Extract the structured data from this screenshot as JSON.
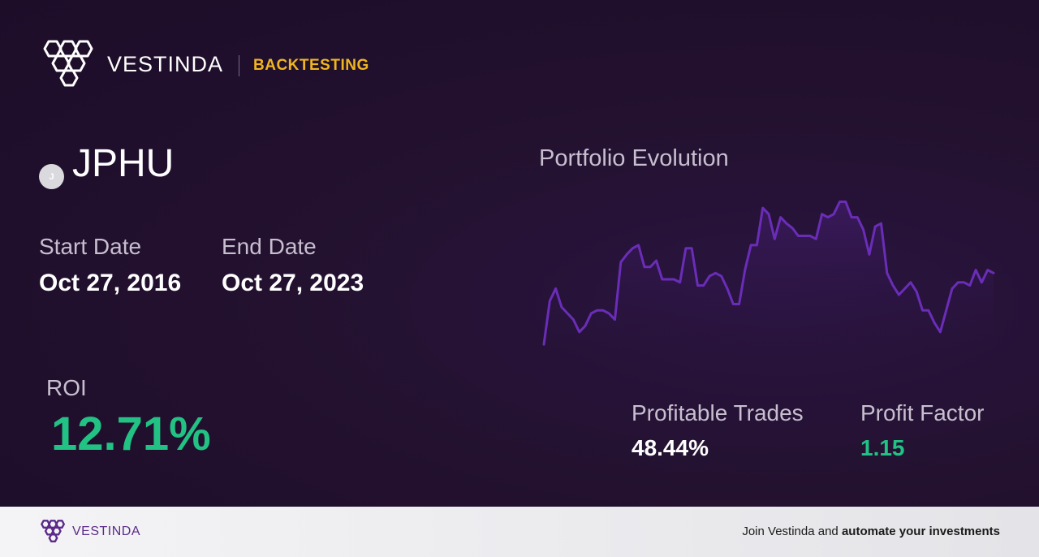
{
  "header": {
    "brand": "VESTINDA",
    "product": "BACKTESTING",
    "logo_icon": "vestinda-hexagon-logo-icon"
  },
  "asset": {
    "badge_letter": "J",
    "ticker": "JPHU"
  },
  "dates": {
    "start_label": "Start Date",
    "start_value": "Oct 27, 2016",
    "end_label": "End Date",
    "end_value": "Oct 27, 2023"
  },
  "roi": {
    "label": "ROI",
    "value": "12.71%"
  },
  "chart": {
    "title": "Portfolio Evolution",
    "line_color": "#6a2db8"
  },
  "chart_data": {
    "type": "line",
    "title": "Portfolio Evolution",
    "xlabel": "",
    "ylabel": "",
    "grid": false,
    "legend": "none",
    "ylim": [
      0,
      100
    ],
    "values": [
      2,
      30,
      38,
      26,
      22,
      18,
      10,
      14,
      22,
      24,
      24,
      22,
      18,
      55,
      60,
      64,
      66,
      52,
      52,
      56,
      44,
      44,
      44,
      42,
      64,
      64,
      40,
      40,
      46,
      48,
      46,
      38,
      28,
      28,
      50,
      66,
      66,
      90,
      86,
      70,
      84,
      80,
      77,
      72,
      72,
      72,
      70,
      86,
      84,
      86,
      94,
      94,
      84,
      84,
      76,
      60,
      78,
      80,
      48,
      40,
      34,
      38,
      42,
      36,
      24,
      24,
      16,
      10,
      24,
      38,
      42,
      42,
      40,
      50,
      42,
      50,
      48
    ]
  },
  "stats": {
    "profitable_trades_label": "Profitable Trades",
    "profitable_trades_value": "48.44%",
    "profit_factor_label": "Profit Factor",
    "profit_factor_value": "1.15"
  },
  "footer": {
    "brand": "VESTINDA",
    "cta_prefix": "Join Vestinda and ",
    "cta_bold": "automate your investments"
  },
  "colors": {
    "background": "#1f0f2c",
    "accent_yellow": "#f0b51e",
    "positive_green": "#22c284",
    "footer_brand_purple": "#5b2a8a"
  }
}
